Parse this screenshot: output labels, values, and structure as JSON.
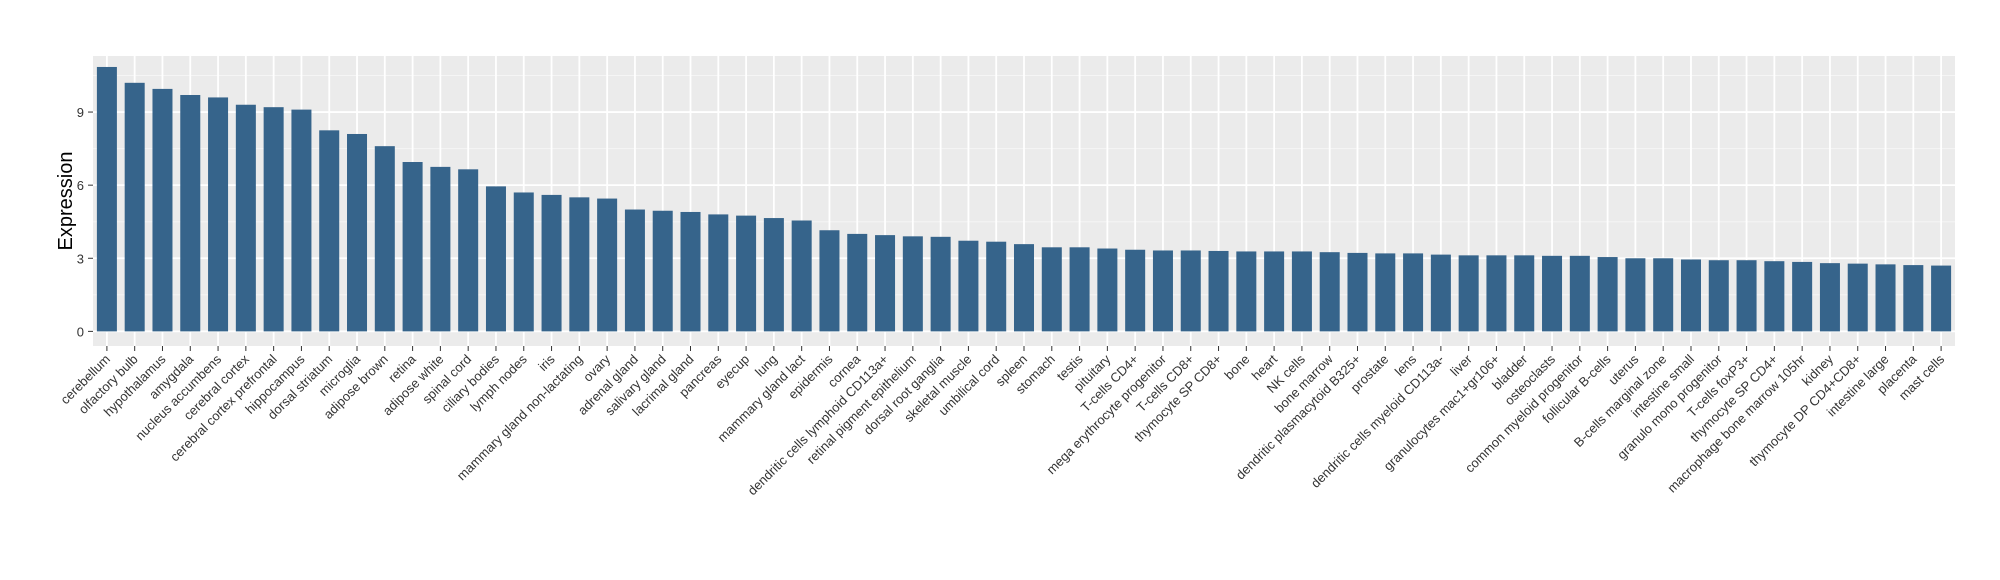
{
  "chart_data": {
    "type": "bar",
    "ylabel": "Expression",
    "xlabel": "",
    "ylim": [
      -0.6,
      11.3
    ],
    "yticks": [
      0,
      3,
      6,
      9
    ],
    "grid": true,
    "bar_color": "#36648B",
    "panel_color": "#EBEBEB",
    "categories": [
      "cerebellum",
      "olfactory bulb",
      "hypothalamus",
      "amygdala",
      "nucleus accumbens",
      "cerebral cortex",
      "cerebral cortex prefrontal",
      "hippocampus",
      "dorsal striatum",
      "microglia",
      "adipose brown",
      "retina",
      "adipose white",
      "spinal cord",
      "ciliary bodies",
      "lymph nodes",
      "iris",
      "mammary gland non-lactating",
      "ovary",
      "adrenal gland",
      "salivary gland",
      "lacrimal gland",
      "pancreas",
      "eyecup",
      "lung",
      "mammary gland  lact",
      "epidermis",
      "cornea",
      "dendritic cells lymphoid CD113a+",
      "retinal pigment epithelium",
      "dorsal root ganglia",
      "skeletal muscle",
      "umbilical cord",
      "spleen",
      "stomach",
      "testis",
      "pituitary",
      "T-cells CD4+",
      "mega erythrocyte progenitor",
      "T-cells CD8+",
      "thymocyte SP CD8+",
      "bone",
      "heart",
      "NK cells",
      "bone marrow",
      "dendritic plasmacytoid B325+",
      "prostate",
      "lens",
      "dendritic cells myeloid CD113a-",
      "liver",
      "granulocytes mac1+gr106+",
      "bladder",
      "osteoclasts",
      "common myeloid progenitor",
      "follicular B-cells",
      "uterus",
      "B-cells marginal zone",
      "intestine small",
      "granulo mono progenitor",
      "T-cells foxP3+",
      "thymocyte SP CD4+",
      "macrophage bone marrow 105hr",
      "kidney",
      "thymocyte DP CD4+CD8+",
      "intestine large",
      "placenta",
      "mast cells"
    ],
    "values": [
      10.85,
      10.2,
      9.95,
      9.7,
      9.6,
      9.3,
      9.2,
      9.1,
      8.25,
      8.1,
      7.6,
      6.95,
      6.75,
      6.65,
      5.95,
      5.7,
      5.6,
      5.5,
      5.45,
      5.0,
      4.95,
      4.9,
      4.8,
      4.75,
      4.65,
      4.55,
      4.15,
      4.0,
      3.95,
      3.9,
      3.88,
      3.72,
      3.68,
      3.58,
      3.45,
      3.45,
      3.4,
      3.35,
      3.32,
      3.32,
      3.3,
      3.28,
      3.28,
      3.28,
      3.25,
      3.22,
      3.2,
      3.2,
      3.15,
      3.12,
      3.12,
      3.12,
      3.1,
      3.1,
      3.05,
      3.0,
      3.0,
      2.95,
      2.92,
      2.92,
      2.88,
      2.85,
      2.8,
      2.78,
      2.75,
      2.72,
      2.7
    ]
  }
}
